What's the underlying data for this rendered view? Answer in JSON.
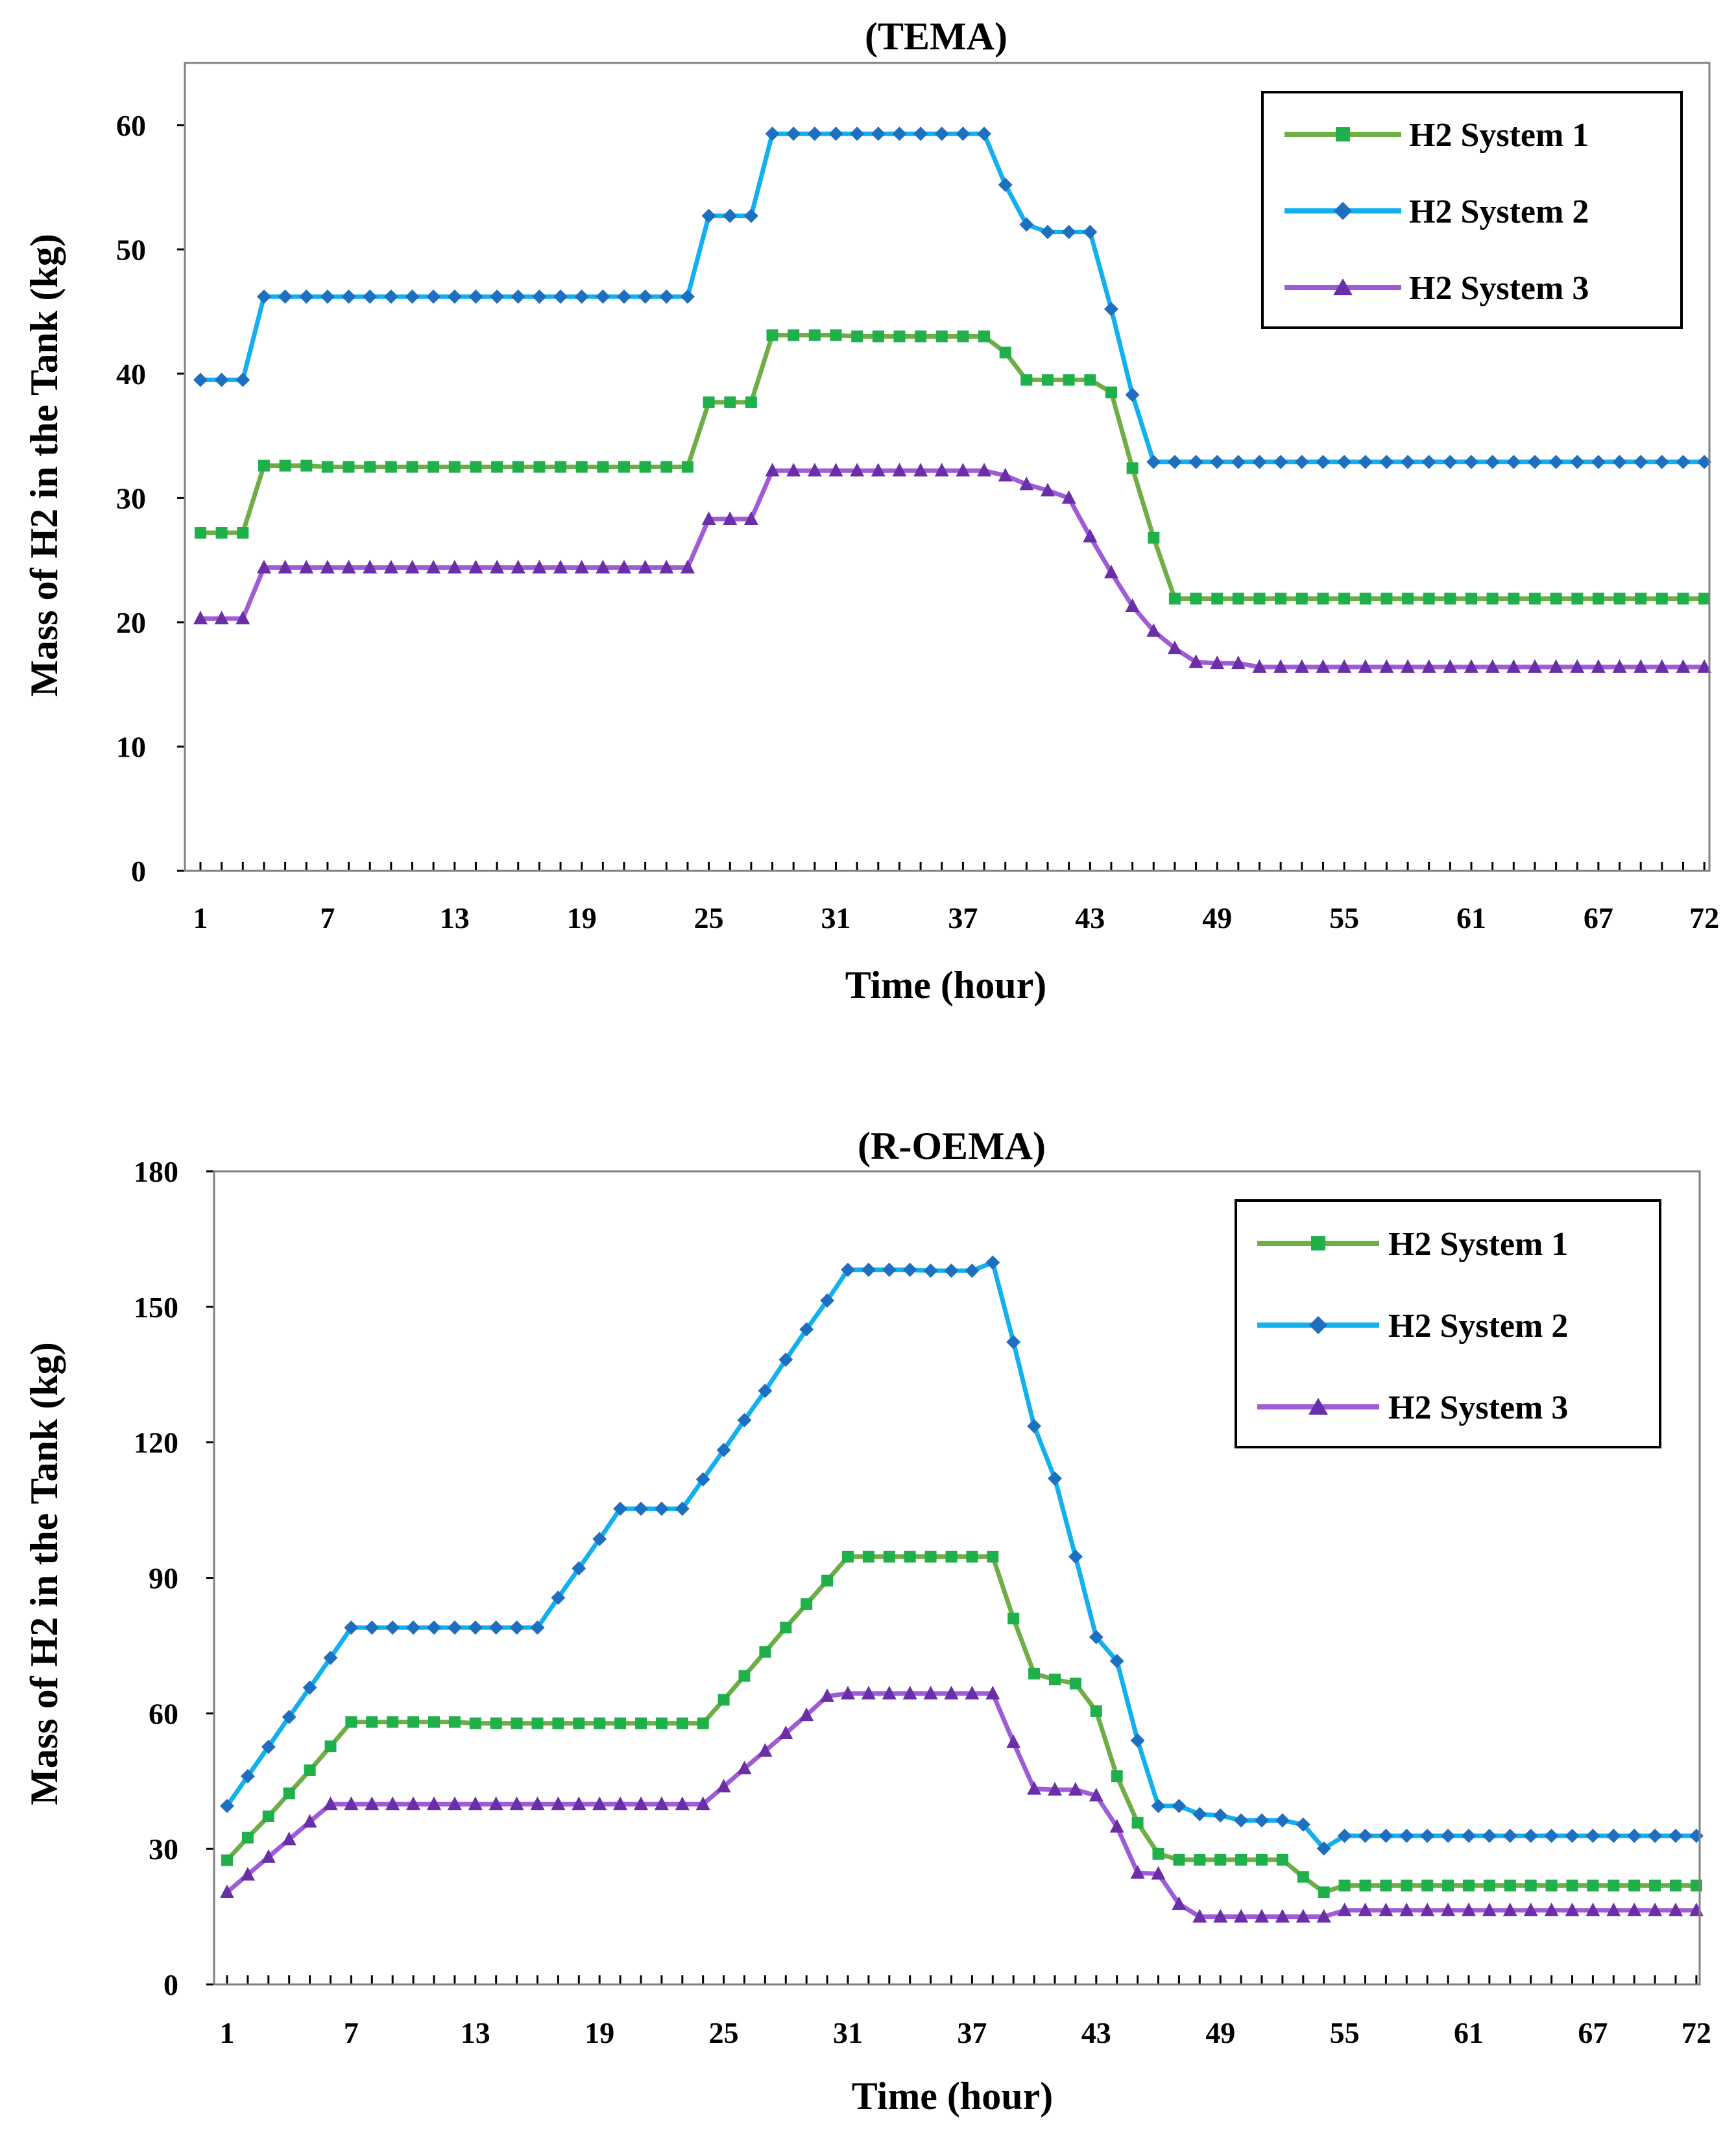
{
  "chart_data": [
    {
      "type": "line",
      "title": "(TEMA)",
      "xlabel": "Time (hour)",
      "ylabel": "Mass of H2 in the Tank (kg)",
      "xlim": [
        1,
        72
      ],
      "ylim": [
        0,
        65
      ],
      "yticks": [
        0,
        10,
        20,
        30,
        40,
        50,
        60
      ],
      "xticks": [
        1,
        7,
        13,
        19,
        25,
        31,
        37,
        43,
        49,
        55,
        61,
        67,
        72
      ],
      "legend": "top-right",
      "series": [
        {
          "name": "H2 System 1",
          "color": "#6fad46",
          "marker_color": "#1fb04b",
          "marker": "square",
          "values": [
            27.2,
            27.2,
            27.2,
            32.6,
            32.6,
            32.6,
            32.5,
            32.5,
            32.5,
            32.5,
            32.5,
            32.5,
            32.5,
            32.5,
            32.5,
            32.5,
            32.5,
            32.5,
            32.5,
            32.5,
            32.5,
            32.5,
            32.5,
            32.5,
            37.7,
            37.7,
            37.7,
            43.1,
            43.1,
            43.1,
            43.1,
            43.0,
            43.0,
            43.0,
            43.0,
            43.0,
            43.0,
            43.0,
            41.7,
            39.5,
            39.5,
            39.5,
            39.5,
            38.5,
            32.4,
            26.8,
            21.9,
            21.9,
            21.9,
            21.9,
            21.9,
            21.9,
            21.9,
            21.9,
            21.9,
            21.9,
            21.9,
            21.9,
            21.9,
            21.9,
            21.9,
            21.9,
            21.9,
            21.9,
            21.9,
            21.9,
            21.9,
            21.9,
            21.9,
            21.9,
            21.9,
            21.9
          ]
        },
        {
          "name": "H2 System 2",
          "color": "#12b0ee",
          "marker_color": "#1f6fc0",
          "marker": "diamond",
          "values": [
            39.5,
            39.5,
            39.5,
            46.2,
            46.2,
            46.2,
            46.2,
            46.2,
            46.2,
            46.2,
            46.2,
            46.2,
            46.2,
            46.2,
            46.2,
            46.2,
            46.2,
            46.2,
            46.2,
            46.2,
            46.2,
            46.2,
            46.2,
            46.2,
            52.7,
            52.7,
            52.7,
            59.3,
            59.3,
            59.3,
            59.3,
            59.3,
            59.3,
            59.3,
            59.3,
            59.3,
            59.3,
            59.3,
            55.2,
            52.0,
            51.4,
            51.4,
            51.4,
            45.2,
            38.3,
            32.9,
            32.9,
            32.9,
            32.9,
            32.9,
            32.9,
            32.9,
            32.9,
            32.9,
            32.9,
            32.9,
            32.9,
            32.9,
            32.9,
            32.9,
            32.9,
            32.9,
            32.9,
            32.9,
            32.9,
            32.9,
            32.9,
            32.9,
            32.9,
            32.9,
            32.9,
            32.9
          ]
        },
        {
          "name": "H2 System 3",
          "color": "#a05cd6",
          "marker_color": "#6a2fa8",
          "marker": "triangle",
          "values": [
            20.3,
            20.3,
            20.3,
            24.4,
            24.4,
            24.4,
            24.4,
            24.4,
            24.4,
            24.4,
            24.4,
            24.4,
            24.4,
            24.4,
            24.4,
            24.4,
            24.4,
            24.4,
            24.4,
            24.4,
            24.4,
            24.4,
            24.4,
            24.4,
            28.3,
            28.3,
            28.3,
            32.2,
            32.2,
            32.2,
            32.2,
            32.2,
            32.2,
            32.2,
            32.2,
            32.2,
            32.2,
            32.2,
            31.8,
            31.1,
            30.6,
            30.0,
            26.9,
            24.0,
            21.3,
            19.3,
            17.9,
            16.8,
            16.7,
            16.7,
            16.4,
            16.4,
            16.4,
            16.4,
            16.4,
            16.4,
            16.4,
            16.4,
            16.4,
            16.4,
            16.4,
            16.4,
            16.4,
            16.4,
            16.4,
            16.4,
            16.4,
            16.4,
            16.4,
            16.4,
            16.4,
            16.4
          ]
        }
      ]
    },
    {
      "type": "line",
      "title": "(R-OEMA)",
      "xlabel": "Time (hour)",
      "ylabel": "Mass of H2 in the Tank (kg)",
      "xlim": [
        1,
        72
      ],
      "ylim": [
        0,
        180
      ],
      "yticks": [
        0,
        30,
        60,
        90,
        120,
        150,
        180
      ],
      "xticks": [
        1,
        7,
        13,
        19,
        25,
        31,
        37,
        43,
        49,
        55,
        61,
        67,
        72
      ],
      "legend": "top-right",
      "series": [
        {
          "name": "H2 System 1",
          "color": "#6fad46",
          "marker_color": "#1fb04b",
          "marker": "square",
          "values": [
            27.5,
            32.5,
            37.2,
            42.3,
            47.4,
            52.7,
            58.1,
            58.1,
            58.1,
            58.1,
            58.1,
            58.1,
            57.8,
            57.8,
            57.8,
            57.8,
            57.8,
            57.8,
            57.8,
            57.8,
            57.8,
            57.8,
            57.8,
            57.8,
            63.0,
            68.3,
            73.6,
            79.0,
            84.2,
            89.4,
            94.7,
            94.7,
            94.7,
            94.7,
            94.7,
            94.7,
            94.7,
            94.7,
            81.0,
            68.8,
            67.5,
            66.6,
            60.5,
            46.1,
            35.8,
            28.9,
            27.6,
            27.6,
            27.6,
            27.6,
            27.6,
            27.6,
            23.8,
            20.4,
            21.9,
            21.9,
            21.9,
            21.9,
            21.9,
            21.9,
            21.9,
            21.9,
            21.9,
            21.9,
            21.9,
            21.9,
            21.9,
            21.9,
            21.9,
            21.9,
            21.9,
            21.9
          ]
        },
        {
          "name": "H2 System 2",
          "color": "#12b0ee",
          "marker_color": "#1f6fc0",
          "marker": "diamond",
          "values": [
            39.5,
            46.1,
            52.6,
            59.2,
            65.7,
            72.3,
            79.0,
            79.0,
            79.0,
            79.0,
            79.0,
            79.0,
            79.0,
            79.0,
            79.0,
            79.0,
            85.6,
            92.1,
            98.6,
            105.3,
            105.3,
            105.3,
            105.3,
            111.8,
            118.3,
            124.9,
            131.4,
            138.3,
            145.0,
            151.4,
            158.2,
            158.2,
            158.2,
            158.2,
            158.0,
            158.0,
            158.0,
            159.8,
            142.2,
            123.6,
            112.0,
            94.7,
            76.9,
            71.6,
            54.0,
            39.5,
            39.5,
            37.7,
            37.4,
            36.3,
            36.3,
            36.3,
            35.4,
            30.1,
            32.9,
            32.9,
            32.9,
            32.9,
            32.9,
            32.9,
            32.9,
            32.9,
            32.9,
            32.9,
            32.9,
            32.9,
            32.9,
            32.9,
            32.9,
            32.9,
            32.9,
            32.9
          ]
        },
        {
          "name": "H2 System 3",
          "color": "#a05cd6",
          "marker_color": "#6a2fa8",
          "marker": "triangle",
          "values": [
            20.4,
            24.3,
            28.2,
            32.1,
            36.0,
            39.9,
            39.9,
            39.9,
            39.9,
            39.9,
            39.9,
            39.9,
            39.9,
            39.9,
            39.9,
            39.9,
            39.9,
            39.9,
            39.9,
            39.9,
            39.9,
            39.9,
            39.9,
            39.9,
            43.8,
            47.8,
            51.7,
            55.6,
            59.6,
            63.8,
            64.4,
            64.4,
            64.4,
            64.4,
            64.4,
            64.4,
            64.4,
            64.4,
            53.6,
            43.3,
            43.1,
            43.1,
            41.8,
            34.9,
            24.7,
            24.5,
            17.8,
            15.0,
            15.0,
            15.0,
            15.0,
            15.0,
            15.0,
            15.0,
            16.4,
            16.4,
            16.4,
            16.4,
            16.4,
            16.4,
            16.4,
            16.4,
            16.4,
            16.4,
            16.4,
            16.4,
            16.4,
            16.4,
            16.4,
            16.4,
            16.4,
            16.4
          ]
        }
      ]
    }
  ]
}
